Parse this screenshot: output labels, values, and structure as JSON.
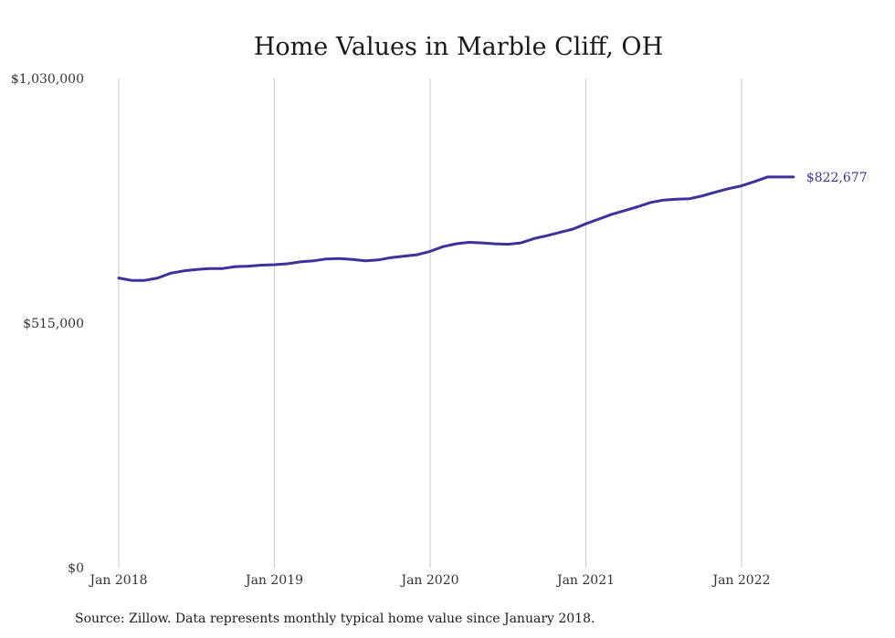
{
  "chart_data": {
    "type": "line",
    "title": "Home Values in Marble Cliff, OH",
    "xlabel": "",
    "ylabel": "",
    "ylim": [
      0,
      1030000
    ],
    "y_ticks": [
      {
        "value": 0,
        "label": "$0"
      },
      {
        "value": 515000,
        "label": "$515,000"
      },
      {
        "value": 1030000,
        "label": "$1,030,000"
      }
    ],
    "x_ticks": [
      "Jan 2018",
      "Jan 2019",
      "Jan 2020",
      "Jan 2021",
      "Jan 2022"
    ],
    "grid": {
      "vertical": true,
      "horizontal": false
    },
    "x": [
      "2018-01",
      "2018-02",
      "2018-03",
      "2018-04",
      "2018-05",
      "2018-06",
      "2018-07",
      "2018-08",
      "2018-09",
      "2018-10",
      "2018-11",
      "2018-12",
      "2019-01",
      "2019-02",
      "2019-03",
      "2019-04",
      "2019-05",
      "2019-06",
      "2019-07",
      "2019-08",
      "2019-09",
      "2019-10",
      "2019-11",
      "2019-12",
      "2020-01",
      "2020-02",
      "2020-03",
      "2020-04",
      "2020-05",
      "2020-06",
      "2020-07",
      "2020-08",
      "2020-09",
      "2020-10",
      "2020-11",
      "2020-12",
      "2021-01",
      "2021-02",
      "2021-03",
      "2021-04",
      "2021-05",
      "2021-06",
      "2021-07",
      "2021-08",
      "2021-09",
      "2021-10",
      "2021-11",
      "2021-12",
      "2022-01",
      "2022-02",
      "2022-03",
      "2022-04",
      "2022-05"
    ],
    "series": [
      {
        "color": "#3b3399",
        "values": [
          610000,
          605000,
          605000,
          610000,
          620000,
          625000,
          628000,
          630000,
          630000,
          634000,
          635000,
          637000,
          638000,
          640000,
          644000,
          646000,
          650000,
          651000,
          649000,
          646000,
          648000,
          653000,
          656000,
          659000,
          666000,
          676000,
          682000,
          685000,
          684000,
          682000,
          681000,
          684000,
          693000,
          699000,
          706000,
          713000,
          724000,
          734000,
          744000,
          752000,
          760000,
          769000,
          774000,
          776000,
          777000,
          783000,
          791000,
          798000,
          804000,
          813000,
          822677,
          822677,
          822677
        ],
        "end_label": "$822,677"
      }
    ]
  },
  "source_note": "Source: Zillow. Data represents monthly typical home value since January 2018."
}
